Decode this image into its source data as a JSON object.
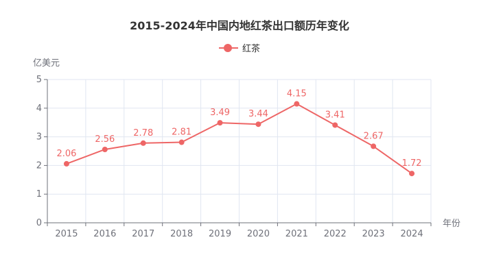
{
  "chart_data": {
    "type": "line",
    "title": "2015-2024年中国内地红茶出口额历年变化",
    "xlabel": "年份",
    "ylabel": "亿美元",
    "categories": [
      "2015",
      "2016",
      "2017",
      "2018",
      "2019",
      "2020",
      "2021",
      "2022",
      "2023",
      "2024"
    ],
    "series": [
      {
        "name": "红茶",
        "values": [
          2.06,
          2.56,
          2.78,
          2.81,
          3.49,
          3.44,
          4.15,
          3.41,
          2.67,
          1.72
        ],
        "color": "#ee6666"
      }
    ],
    "ylim": [
      0,
      5
    ],
    "yticks": [
      "0",
      "1",
      "2",
      "3",
      "4",
      "5"
    ],
    "grid": true,
    "legend_position": "top-center"
  }
}
